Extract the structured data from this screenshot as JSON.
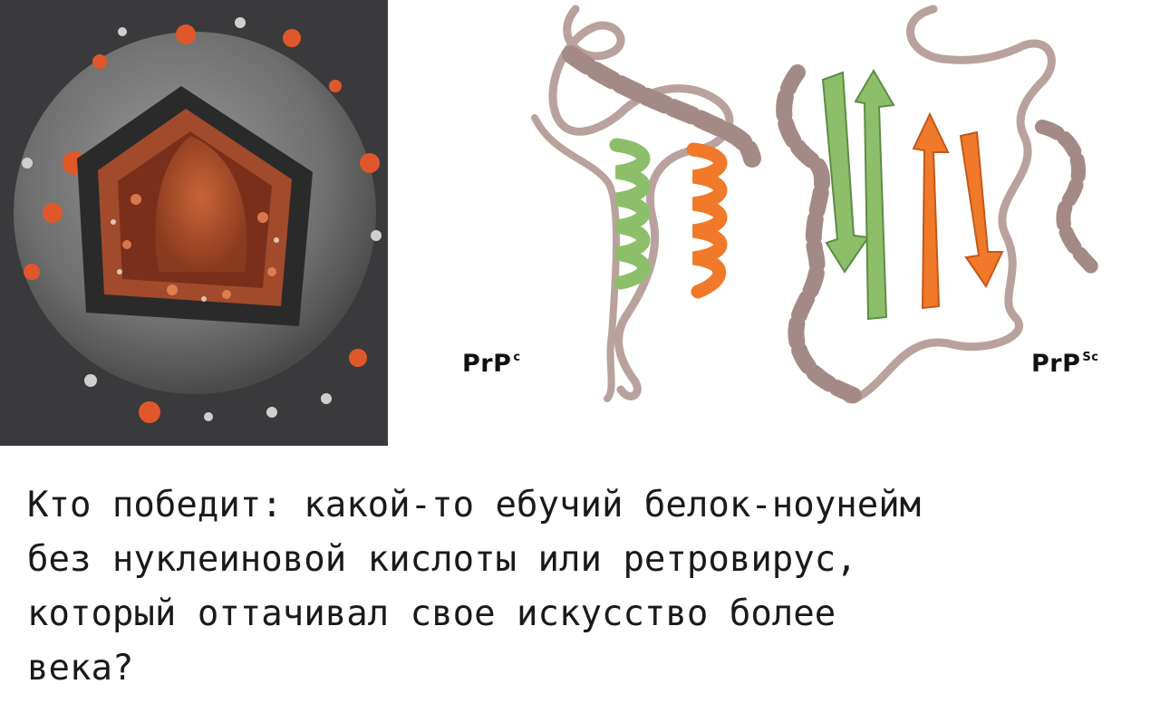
{
  "labels": {
    "prpc": {
      "main": "PrP",
      "sup": "c"
    },
    "prpsc": {
      "main": "PrP",
      "sup": "Sc"
    }
  },
  "caption": {
    "lines": [
      "Кто победит: какой-то ебучий белок-ноунейм",
      "без нуклеиновой кислоты или ретровирус,",
      "который оттачивал свое искусство более",
      "века?"
    ]
  },
  "colors": {
    "virus_background": "#3a3a3c",
    "virus_shell": "#6b6b6b",
    "virus_core": "#b8502a",
    "protein_orange": "#f07a2a",
    "helix_green": "#8dbf6a",
    "ribbon_mauve": "#a48a86"
  }
}
